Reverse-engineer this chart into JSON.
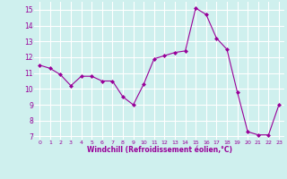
{
  "x": [
    0,
    1,
    2,
    3,
    4,
    5,
    6,
    7,
    8,
    9,
    10,
    11,
    12,
    13,
    14,
    15,
    16,
    17,
    18,
    19,
    20,
    21,
    22,
    23
  ],
  "y": [
    11.5,
    11.3,
    10.9,
    10.2,
    10.8,
    10.8,
    10.5,
    10.5,
    9.5,
    9.0,
    10.3,
    11.9,
    12.1,
    12.3,
    12.4,
    15.1,
    14.7,
    13.2,
    12.5,
    9.8,
    7.3,
    7.1,
    7.1,
    9.0
  ],
  "line_color": "#990099",
  "marker": "D",
  "marker_size": 2,
  "bg_color": "#cff0ee",
  "grid_color": "#ffffff",
  "xlabel": "Windchill (Refroidissement éolien,°C)",
  "xlabel_color": "#990099",
  "tick_color": "#990099",
  "ylim": [
    6.8,
    15.5
  ],
  "yticks": [
    7,
    8,
    9,
    10,
    11,
    12,
    13,
    14,
    15
  ],
  "xlim": [
    -0.5,
    23.5
  ],
  "xticks": [
    0,
    1,
    2,
    3,
    4,
    5,
    6,
    7,
    8,
    9,
    10,
    11,
    12,
    13,
    14,
    15,
    16,
    17,
    18,
    19,
    20,
    21,
    22,
    23
  ]
}
